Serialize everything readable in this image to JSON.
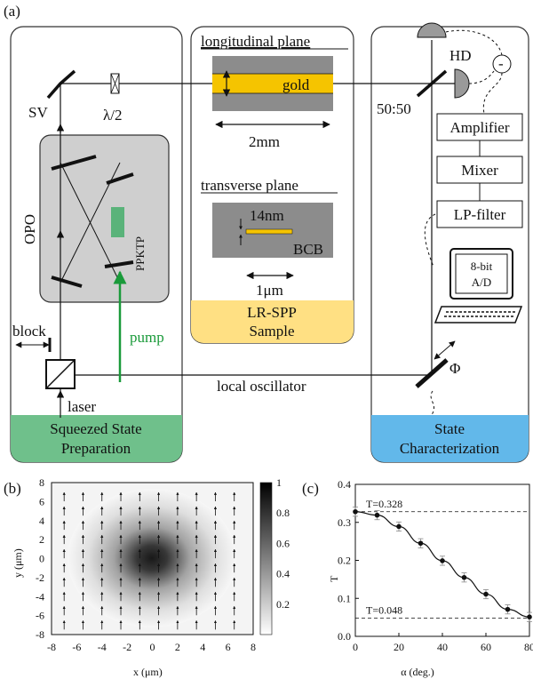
{
  "panel_a": {
    "tag": "(a)",
    "sections": {
      "squeezed": "Squeezed State Preparation",
      "squeezed_lines": [
        "Squeezed State",
        "Preparation"
      ],
      "sample_lines": [
        "LR-SPP",
        "Sample"
      ],
      "characterization_lines": [
        "State",
        "Characterization"
      ]
    },
    "labels": {
      "sv": "SV",
      "half_wave": "λ/2",
      "opo": "OPO",
      "ppktp": "PPKTP",
      "block": "block",
      "pump": "pump",
      "laser": "laser",
      "local_oscillator": "local oscillator",
      "hd": "HD",
      "minus": "-",
      "splitter": "50:50",
      "phi": "Φ",
      "longitudinal": "longitudinal plane",
      "gold": "gold",
      "length": "2mm",
      "transverse": "transverse plane",
      "thickness": "14nm",
      "bcb": "BCB",
      "width": "1μm"
    },
    "chain": [
      "Amplifier",
      "Mixer",
      "LP-filter"
    ],
    "adc_lines": [
      "8-bit",
      "A/D"
    ],
    "colors": {
      "gold": "#f5c400",
      "pump": "#1a9a3a",
      "crystal": "#5ab37a",
      "squeezed_bg": "#6fc08b",
      "sample_bg": "#ffe083",
      "characterization_bg": "#62b8ea",
      "gray_box": "#cfcfcf",
      "sample_gray": "#8c8c8c"
    }
  },
  "panel_b": {
    "tag": "(b)",
    "xlabel": "x (μm)",
    "ylabel": "y (μm)",
    "ticks": [
      "-8",
      "-6",
      "-4",
      "-2",
      "0",
      "2",
      "4",
      "6",
      "8"
    ],
    "colorbar_ticks": [
      "1",
      "0.8",
      "0.6",
      "0.4",
      "0.2"
    ],
    "colorbar_range": [
      0,
      1
    ],
    "range": [
      -8,
      8
    ]
  },
  "chart_data": {
    "type": "scatter",
    "tag": "(c)",
    "xlabel": "α (deg.)",
    "ylabel": "T",
    "xlim": [
      0,
      80
    ],
    "ylim": [
      0,
      0.4
    ],
    "xticks": [
      "0",
      "20",
      "40",
      "60",
      "80"
    ],
    "yticks": [
      "0.0",
      "0.1",
      "0.2",
      "0.3",
      "0.4"
    ],
    "x": [
      0,
      10,
      20,
      30,
      40,
      50,
      60,
      70,
      80
    ],
    "y": [
      0.328,
      0.319,
      0.289,
      0.245,
      0.199,
      0.155,
      0.111,
      0.071,
      0.051
    ],
    "error": [
      0.012,
      0.012,
      0.012,
      0.012,
      0.012,
      0.012,
      0.012,
      0.012,
      0.012
    ],
    "reference_lines": [
      {
        "label": "T=0.328",
        "value": 0.328
      },
      {
        "label": "T=0.048",
        "value": 0.048
      }
    ],
    "grid": false
  }
}
